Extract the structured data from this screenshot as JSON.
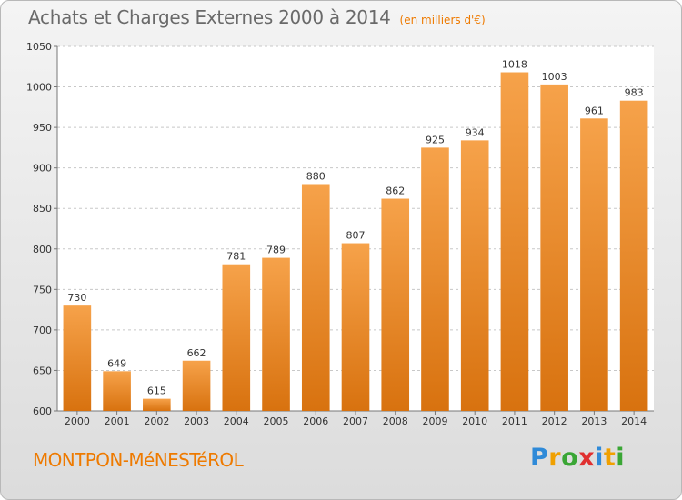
{
  "header": {
    "title": "Achats et Charges Externes 2000 à 2014",
    "subtitle": "(en milliers d'€)"
  },
  "footer": {
    "commune": "MONTPON-MéNESTéROL",
    "brand_letters": [
      "P",
      "r",
      "o",
      "x",
      "i",
      "t",
      "i"
    ],
    "brand_colors": [
      "#2f8ad8",
      "#f0a000",
      "#3aa635",
      "#e03030",
      "#2f8ad8",
      "#f0a000",
      "#3aa635"
    ]
  },
  "colors": {
    "bar_light": "#f6a24a",
    "bar_dark": "#d8720f",
    "grid": "#c8c8c8",
    "axis_text": "#333333",
    "label_text": "#333333"
  },
  "chart_data": {
    "type": "bar",
    "title": "Achats et Charges Externes 2000 à 2014",
    "subtitle": "(en milliers d'€)",
    "categories": [
      "2000",
      "2001",
      "2002",
      "2003",
      "2004",
      "2005",
      "2006",
      "2007",
      "2008",
      "2009",
      "2010",
      "2011",
      "2012",
      "2013",
      "2014"
    ],
    "values": [
      730,
      649,
      615,
      662,
      781,
      789,
      880,
      807,
      862,
      925,
      934,
      1018,
      1003,
      961,
      983
    ],
    "xlabel": "",
    "ylabel": "",
    "ylim": [
      600,
      1050
    ],
    "yticks": [
      600,
      650,
      700,
      750,
      800,
      850,
      900,
      950,
      1000,
      1050
    ],
    "grid": true,
    "data_labels": true
  }
}
